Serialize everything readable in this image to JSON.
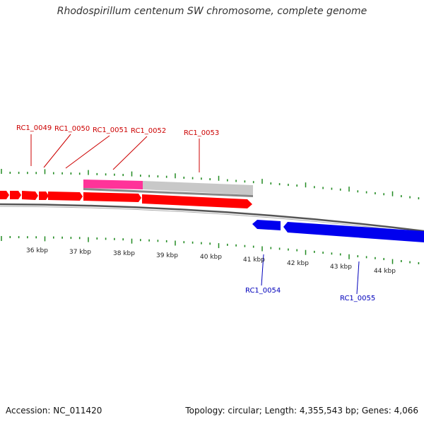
{
  "title": "Rhodospirillum centenum SW chromosome, complete genome",
  "footer": {
    "accession": "Accession: NC_011420",
    "stats": "Topology: circular; Length: 4,355,543 bp; Genes: 4,066"
  },
  "scale_labels": [
    "36 kbp",
    "37 kbp",
    "38 kbp",
    "39 kbp",
    "40 kbp",
    "41 kbp",
    "42 kbp",
    "43 kbp",
    "44 kbp"
  ],
  "genes_forward": [
    "RC1_0049",
    "RC1_0050",
    "RC1_0051",
    "RC1_0052",
    "RC1_0053"
  ],
  "genes_reverse": [
    "RC1_0054",
    "RC1_0055"
  ],
  "colors": {
    "forward_gene": "#ff0000",
    "reverse_gene": "#0000ee",
    "forward_label": "#cc0000",
    "reverse_label": "#0000bb",
    "feature_pink": "#ff3399",
    "feature_gray": "#c0c0c0",
    "tick": "#228b22"
  }
}
